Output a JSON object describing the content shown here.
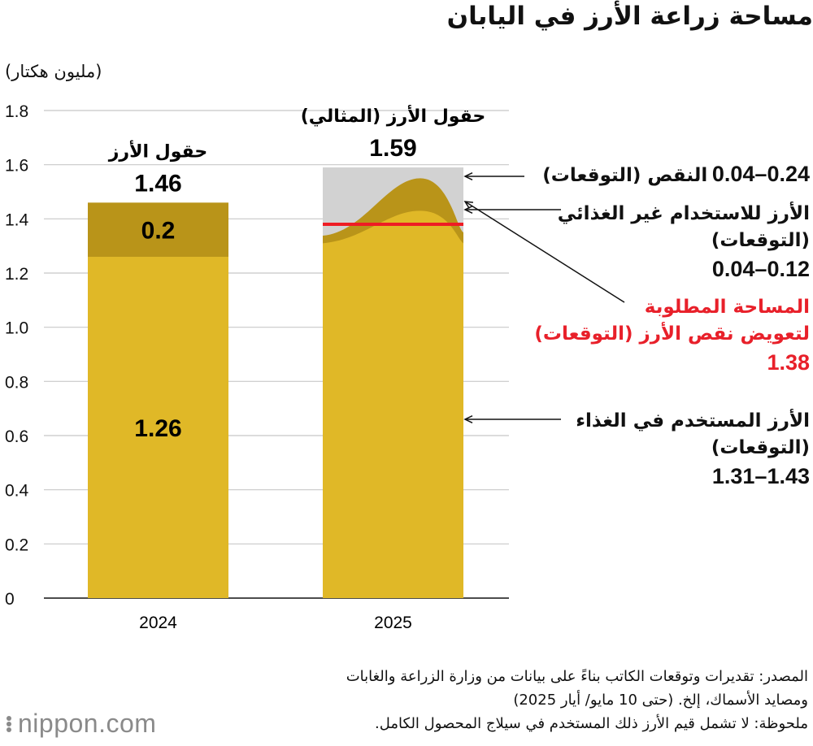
{
  "title": "مساحة زراعة الأرز في اليابان",
  "unit_label": "(مليون هكتار)",
  "chart_data": {
    "type": "bar",
    "categories": [
      "2024",
      "2025"
    ],
    "ylim": [
      0,
      1.8
    ],
    "yticks": [
      "0",
      "0.2",
      "0.4",
      "0.6",
      "0.8",
      "1.0",
      "1.2",
      "1.4",
      "1.6",
      "1.8"
    ],
    "bar_titles": [
      "حقول الأرز",
      "حقول الأرز (المثالي)"
    ],
    "totals": [
      1.46,
      1.59
    ],
    "total_labels": [
      "1.46",
      "1.59"
    ],
    "series": [
      {
        "name": "الأرز المستخدم في الغذاء (التوقعات)",
        "values": [
          1.26,
          1.43
        ],
        "range_2025": [
          1.31,
          1.43
        ],
        "data_label_2024": "1.26"
      },
      {
        "name": "الأرز للاستخدام غير الغذائي (التوقعات)",
        "values": [
          0.2,
          0.12
        ],
        "range_2025": [
          0.04,
          0.12
        ],
        "data_label_2024": "0.2"
      },
      {
        "name": "النقص (التوقعات)",
        "range_2025": [
          0.04,
          0.24
        ]
      }
    ],
    "required_area_line": 1.38,
    "grid": true,
    "colors": {
      "food": "#e0b827",
      "nonfood": "#b99419",
      "shortage": "#d2d2d2",
      "required": "#ee1c24",
      "grid": "#c8c8c8"
    }
  },
  "annotations": {
    "shortage": {
      "label": "النقص (التوقعات)",
      "value": "0.24–0.04"
    },
    "nonfood": {
      "label_1": "الأرز للاستخدام غير الغذائي",
      "label_2": "(التوقعات)",
      "value": "0.12–0.04"
    },
    "required": {
      "label_1": "المساحة المطلوبة",
      "label_2": "لتعويض نقص الأرز (التوقعات)",
      "value": "1.38"
    },
    "food": {
      "label_1": "الأرز المستخدم في الغذاء",
      "label_2": "(التوقعات)",
      "value": "1.43–1.31"
    }
  },
  "source": {
    "line1": "المصدر: تقديرات وتوقعات الكاتب بناءً على بيانات من وزارة الزراعة والغابات",
    "line2": "ومصايد الأسماك، إلخ. (حتى 10 مايو/ أيار 2025)",
    "line3": "ملحوظة: لا تشمل قيم الأرز ذلك المستخدم في سيلاج المحصول الكامل."
  },
  "logo": "nippon.com"
}
